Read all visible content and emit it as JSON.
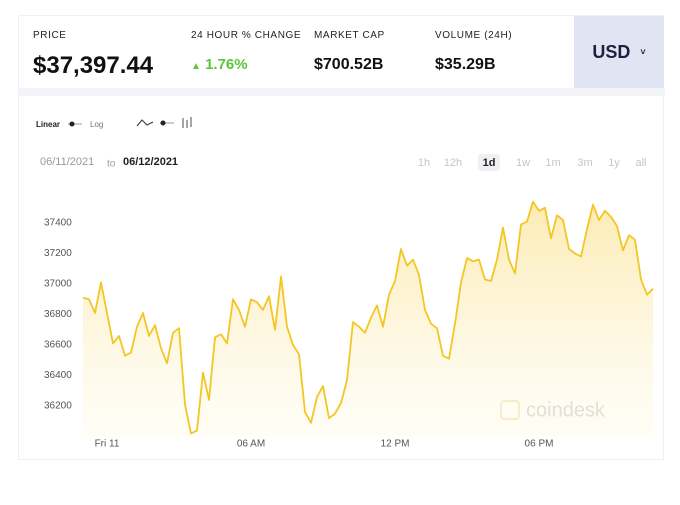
{
  "header": {
    "price_label": "PRICE",
    "price": "$37,397.44",
    "change_label": "24 HOUR % CHANGE",
    "change": "1.76%",
    "market_cap_label": "MARKET CAP",
    "market_cap": "$700.52B",
    "volume_label": "VOLUME (24H)",
    "volume": "$35.29B",
    "currency": "USD"
  },
  "controls": {
    "linear": "Linear",
    "log": "Log",
    "date_from": "06/11/2021",
    "date_to_word": "to",
    "date_to": "06/12/2021",
    "ranges": [
      "1h",
      "12h",
      "1d",
      "1w",
      "1m",
      "3m",
      "1y",
      "all"
    ],
    "watermark": "coindesk"
  },
  "chart_data": {
    "type": "area",
    "color": "#f3c623",
    "x": [
      -1,
      -0.75,
      -0.5,
      -0.25,
      0,
      0.25,
      0.5,
      0.75,
      1,
      1.25,
      1.5,
      1.75,
      2,
      2.25,
      2.5,
      2.75,
      3,
      3.25,
      3.5,
      3.75,
      4,
      4.25,
      4.5,
      4.75,
      5,
      5.25,
      5.5,
      5.75,
      6,
      6.25,
      6.5,
      6.75,
      7,
      7.25,
      7.5,
      7.75,
      8,
      8.25,
      8.5,
      8.75,
      9,
      9.25,
      9.5,
      9.75,
      10,
      10.25,
      10.5,
      10.75,
      11,
      11.25,
      11.5,
      11.75,
      12,
      12.25,
      12.5,
      12.75,
      13,
      13.25,
      13.5,
      13.75,
      14,
      14.25,
      14.5,
      14.75,
      15,
      15.25,
      15.5,
      15.75,
      16,
      16.25,
      16.5,
      16.75,
      17,
      17.25,
      17.5,
      17.75,
      18,
      18.25,
      18.5,
      18.75,
      19,
      19.25,
      19.5,
      19.75,
      20,
      20.25,
      20.5,
      20.75,
      21,
      21.25,
      21.5,
      21.75,
      22,
      22.25,
      22.5,
      22.75
    ],
    "values": [
      36910,
      36900,
      36810,
      37010,
      36810,
      36610,
      36660,
      36530,
      36550,
      36720,
      36810,
      36660,
      36730,
      36580,
      36480,
      36680,
      36710,
      36210,
      36020,
      36040,
      36420,
      36240,
      36650,
      36670,
      36610,
      36900,
      36830,
      36720,
      36900,
      36880,
      36830,
      36920,
      36700,
      37050,
      36720,
      36600,
      36540,
      36160,
      36090,
      36260,
      36330,
      36120,
      36150,
      36220,
      36370,
      36750,
      36720,
      36680,
      36780,
      36860,
      36720,
      36930,
      37020,
      37230,
      37120,
      37160,
      37060,
      36830,
      36740,
      36710,
      36530,
      36510,
      36740,
      37010,
      37170,
      37150,
      37160,
      37030,
      37020,
      37160,
      37370,
      37160,
      37070,
      37390,
      37410,
      37540,
      37480,
      37500,
      37300,
      37450,
      37420,
      37230,
      37200,
      37180,
      37360,
      37520,
      37420,
      37480,
      37440,
      37380,
      37220,
      37320,
      37290,
      37030,
      36930,
      36970
    ],
    "xlim": [
      -1,
      22.75
    ],
    "xticks": [
      {
        "value": 0,
        "label": "Fri 11"
      },
      {
        "value": 6,
        "label": "06 AM"
      },
      {
        "value": 12,
        "label": "12 PM"
      },
      {
        "value": 18,
        "label": "06 PM"
      }
    ],
    "ylim": [
      36000,
      37580
    ],
    "yticks": [
      36200,
      36400,
      36600,
      36800,
      37000,
      37200,
      37400
    ]
  }
}
